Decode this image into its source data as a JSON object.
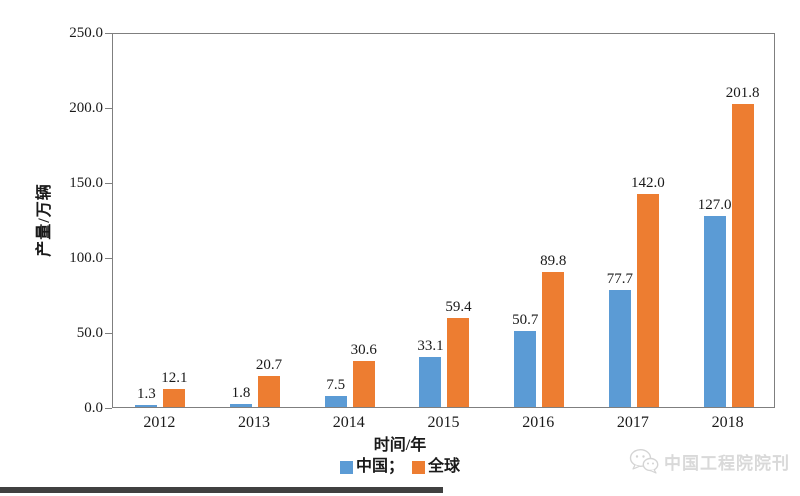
{
  "chart_data": {
    "type": "bar",
    "title": "",
    "categories": [
      "2012",
      "2013",
      "2014",
      "2015",
      "2016",
      "2017",
      "2018"
    ],
    "series": [
      {
        "name": "中国",
        "slug": "china",
        "color": "#5b9bd5",
        "values": [
          1.3,
          1.8,
          7.5,
          33.1,
          50.7,
          77.7,
          127.0
        ]
      },
      {
        "name": "全球",
        "slug": "global",
        "color": "#ed7d31",
        "values": [
          12.1,
          20.7,
          30.6,
          59.4,
          89.8,
          142.0,
          201.8
        ]
      }
    ],
    "xlabel": "时间/年",
    "ylabel": "产量/万辆",
    "ylim": [
      0,
      250
    ],
    "yticks": [
      "0.0",
      "50.0",
      "100.0",
      "150.0",
      "200.0",
      "250.0"
    ],
    "grid": false,
    "legend_position": "bottom",
    "data_labels": true,
    "data_label_format": "one-decimal"
  },
  "legend": {
    "items": [
      {
        "label": "中国；",
        "slug": "china",
        "color": "#5b9bd5"
      },
      {
        "label": "全球",
        "slug": "global",
        "color": "#ed7d31"
      }
    ]
  },
  "watermark": {
    "text": "中国工程院院刊",
    "icon": "wechat-logo-icon",
    "color": "#d9d9d9"
  },
  "colors": {
    "china_series": "#5b9bd5",
    "global_series": "#ed7d31",
    "axis": "#7f7f7f",
    "text": "#1a1a1a",
    "divider_bar": "#404040"
  }
}
